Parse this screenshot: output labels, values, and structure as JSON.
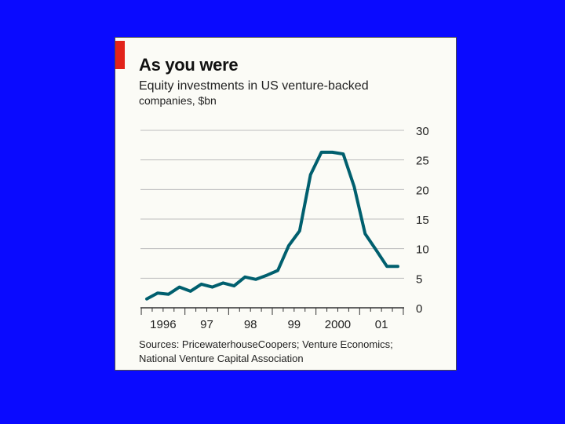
{
  "slide": {
    "background_color": "#0a0aff"
  },
  "card": {
    "title": "As you were",
    "subtitle_line1": "Equity investments in US venture-backed",
    "subtitle_line2": "companies, $bn",
    "sources_line1": "Sources: PricewaterhouseCoopers; Venture Economics;",
    "sources_line2": "National Venture Capital Association",
    "accent_color": "#e2231a",
    "line_color": "#005f6e"
  },
  "chart_data": {
    "type": "line",
    "title": "As you were",
    "ylabel": "Equity investments in US venture-backed companies, $bn",
    "xlabel": "",
    "ylim": [
      0,
      30
    ],
    "y_ticks": [
      0,
      5,
      10,
      15,
      20,
      25,
      30
    ],
    "y_tick_labels": [
      "0",
      "5",
      "10",
      "15",
      "20",
      "25",
      "30"
    ],
    "x_tick_labels": [
      "1996",
      "97",
      "98",
      "99",
      "2000",
      "01"
    ],
    "grid": true,
    "series": [
      {
        "name": "Equity investments",
        "x": [
          "1996Q1",
          "1996Q2",
          "1996Q3",
          "1996Q4",
          "1997Q1",
          "1997Q2",
          "1997Q3",
          "1997Q4",
          "1998Q1",
          "1998Q2",
          "1998Q3",
          "1998Q4",
          "1999Q1",
          "1999Q2",
          "1999Q3",
          "1999Q4",
          "2000Q1",
          "2000Q2",
          "2000Q3",
          "2000Q4",
          "2001Q1",
          "2001Q2",
          "2001Q3",
          "2001Q4"
        ],
        "values": [
          1.5,
          2.5,
          2.3,
          3.5,
          2.8,
          4.0,
          3.5,
          4.2,
          3.7,
          5.2,
          4.8,
          5.5,
          6.3,
          10.5,
          13.0,
          22.5,
          26.3,
          26.3,
          26.0,
          20.5,
          12.5,
          9.8,
          7.0,
          7.0
        ]
      }
    ]
  }
}
